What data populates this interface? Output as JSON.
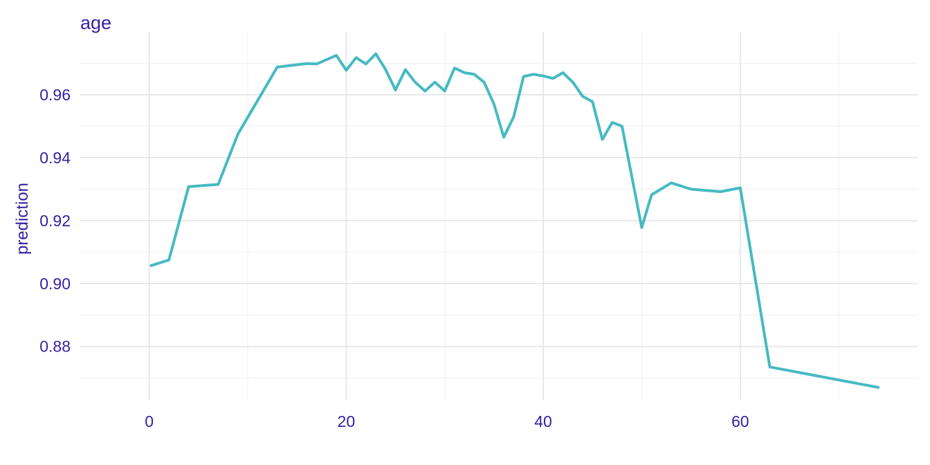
{
  "chart_data": {
    "type": "line",
    "title": "age",
    "xlabel": "",
    "ylabel": "prediction",
    "xlim": [
      -7,
      78
    ],
    "ylim": [
      0.863,
      0.98
    ],
    "x_ticks": [
      0,
      20,
      40,
      60
    ],
    "x_minor_ticks": [
      10,
      30,
      50,
      70
    ],
    "y_ticks": [
      0.88,
      0.9,
      0.92,
      0.94,
      0.96
    ],
    "y_minor_ticks": [
      0.87,
      0.89,
      0.91,
      0.93,
      0.95,
      0.97
    ],
    "x_tick_labels": [
      "0",
      "20",
      "40",
      "60"
    ],
    "y_tick_labels": [
      "0.88",
      "0.90",
      "0.92",
      "0.94",
      "0.96"
    ],
    "grid": true,
    "legend": "none",
    "colors": {
      "text": "#371ea3",
      "line": "#46bac2"
    },
    "series": [
      {
        "x": [
          0.2,
          2,
          4,
          7,
          9,
          13,
          16,
          17,
          19,
          20,
          21,
          22,
          23,
          24,
          25,
          26,
          27,
          28,
          29,
          30,
          31,
          32,
          33,
          34,
          35,
          36,
          37,
          38,
          39,
          40,
          41,
          42,
          43,
          44,
          45,
          46,
          47,
          48,
          50,
          51,
          53,
          55,
          58,
          60,
          63,
          74
        ],
        "y": [
          0.9057,
          0.9075,
          0.9308,
          0.9315,
          0.9475,
          0.9688,
          0.9699,
          0.9698,
          0.9725,
          0.9678,
          0.9718,
          0.9698,
          0.973,
          0.968,
          0.9615,
          0.968,
          0.964,
          0.9612,
          0.964,
          0.9612,
          0.9685,
          0.967,
          0.9665,
          0.964,
          0.957,
          0.9465,
          0.953,
          0.9658,
          0.9665,
          0.966,
          0.9652,
          0.967,
          0.964,
          0.9595,
          0.9578,
          0.9458,
          0.9512,
          0.95,
          0.9178,
          0.9282,
          0.932,
          0.93,
          0.9292,
          0.9304,
          0.8735,
          0.867
        ]
      }
    ]
  }
}
